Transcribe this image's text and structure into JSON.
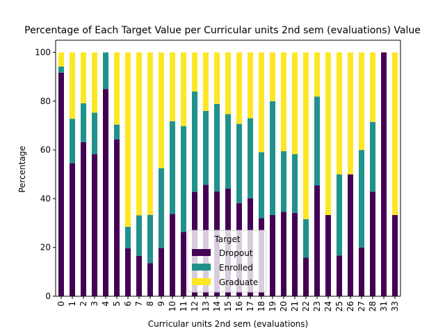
{
  "chart_data": {
    "type": "bar",
    "stacked": true,
    "title": "Percentage of Each Target Value per Curricular units 2nd sem (evaluations) Value",
    "xlabel": "Curricular units 2nd sem (evaluations)",
    "ylabel": "Percentage",
    "ylim": [
      0,
      105
    ],
    "yticks": [
      0,
      20,
      40,
      60,
      80,
      100
    ],
    "grid": false,
    "categories": [
      "0",
      "1",
      "2",
      "3",
      "4",
      "5",
      "6",
      "7",
      "8",
      "9",
      "10",
      "11",
      "12",
      "13",
      "14",
      "15",
      "16",
      "17",
      "18",
      "19",
      "20",
      "21",
      "22",
      "23",
      "24",
      "25",
      "26",
      "27",
      "28",
      "31",
      "33"
    ],
    "series": [
      {
        "name": "Dropout",
        "color": "#440154",
        "values": [
          91.7,
          54.5,
          63.2,
          58.3,
          85.0,
          64.3,
          19.7,
          16.6,
          13.6,
          19.8,
          33.7,
          26.4,
          42.8,
          45.7,
          43.0,
          44.2,
          38.2,
          40.2,
          32.0,
          33.3,
          34.6,
          34.2,
          15.8,
          45.5,
          33.3,
          16.7,
          50.0,
          20.0,
          42.9,
          100.0,
          33.3
        ]
      },
      {
        "name": "Enrolled",
        "color": "#21918c",
        "values": [
          2.5,
          18.3,
          15.9,
          17.0,
          15.0,
          6.1,
          8.8,
          16.6,
          19.8,
          32.7,
          38.1,
          43.4,
          41.2,
          30.3,
          35.9,
          30.5,
          32.5,
          32.8,
          27.1,
          46.7,
          24.9,
          24.1,
          15.8,
          36.4,
          0.0,
          33.3,
          0.0,
          40.0,
          28.6,
          0.0,
          0.0
        ]
      },
      {
        "name": "Graduate",
        "color": "#fde725",
        "values": [
          5.8,
          27.2,
          20.9,
          24.7,
          0.0,
          29.6,
          71.5,
          66.8,
          66.6,
          47.5,
          28.2,
          30.2,
          16.0,
          24.0,
          21.1,
          25.3,
          29.3,
          27.0,
          40.9,
          20.0,
          40.5,
          41.7,
          68.4,
          18.1,
          66.7,
          50.0,
          50.0,
          40.0,
          28.5,
          0.0,
          66.7
        ]
      }
    ],
    "legend": {
      "title": "Target",
      "position": "lower center"
    }
  }
}
